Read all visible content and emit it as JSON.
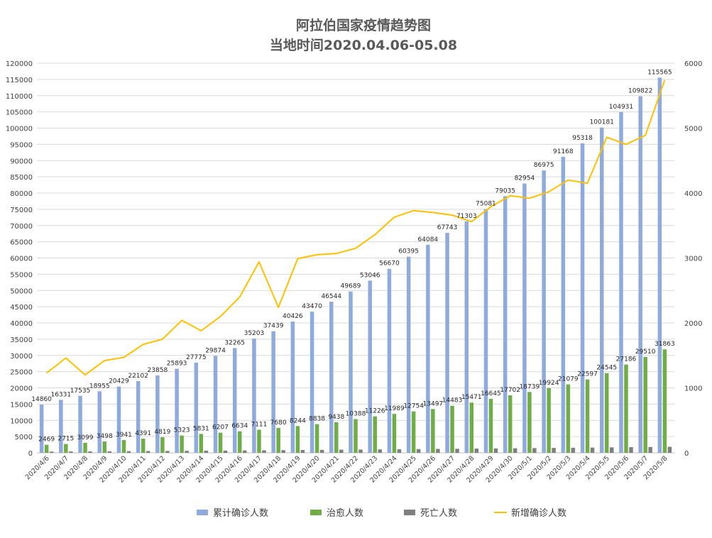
{
  "chart_data": {
    "type": "bar",
    "title": "阿拉伯国家疫情趋势图",
    "subtitle": "当地时间2020.04.06-05.08",
    "categories": [
      "2020/4/6",
      "2020/4/7",
      "2020/4/8",
      "2020/4/9",
      "2020/4/10",
      "2020/4/11",
      "2020/4/12",
      "2020/4/13",
      "2020/4/14",
      "2020/4/15",
      "2020/4/16",
      "2020/4/17",
      "2020/4/18",
      "2020/4/19",
      "2020/4/20",
      "2020/4/21",
      "2020/4/22",
      "2020/4/23",
      "2020/4/24",
      "2020/4/25",
      "2020/4/26",
      "2020/4/27",
      "2020/4/28",
      "2020/4/29",
      "2020/4/30",
      "2020/5/1",
      "2020/5/2",
      "2020/5/3",
      "2020/5/4",
      "2020/5/5",
      "2020/5/6",
      "2020/5/7",
      "2020/5/8"
    ],
    "series": [
      {
        "name": "累计确诊人数",
        "type": "bar",
        "axis": "left",
        "color": "#8faadc",
        "values": [
          14860,
          16331,
          17535,
          18955,
          20429,
          22102,
          23858,
          25893,
          27775,
          29874,
          32265,
          35203,
          37439,
          40426,
          43470,
          46544,
          49689,
          53046,
          56670,
          60395,
          64084,
          67743,
          71303,
          75081,
          79035,
          82954,
          86975,
          91168,
          95318,
          100181,
          104931,
          109822,
          115565
        ]
      },
      {
        "name": "治愈人数",
        "type": "bar",
        "axis": "left",
        "color": "#70ad47",
        "values": [
          2469,
          2715,
          3099,
          3498,
          3941,
          4391,
          4819,
          5323,
          5831,
          6207,
          6634,
          7111,
          7680,
          8244,
          8838,
          9438,
          10388,
          11226,
          11989,
          12754,
          13497,
          14483,
          15471,
          16645,
          17702,
          18739,
          19924,
          21079,
          22597,
          24545,
          27186,
          29510,
          31863
        ]
      },
      {
        "name": "死亡人数",
        "type": "bar",
        "axis": "left",
        "color": "#7f7f7f",
        "values": [
          null,
          null,
          null,
          null,
          null,
          null,
          null,
          null,
          null,
          null,
          null,
          null,
          null,
          null,
          null,
          null,
          null,
          null,
          null,
          null,
          null,
          null,
          null,
          null,
          null,
          null,
          null,
          null,
          null,
          null,
          null,
          null,
          null
        ],
        "approx_values": [
          380,
          420,
          450,
          480,
          520,
          550,
          590,
          620,
          660,
          700,
          740,
          780,
          820,
          870,
          920,
          970,
          1010,
          1060,
          1110,
          1160,
          1210,
          1260,
          1310,
          1360,
          1410,
          1460,
          1510,
          1560,
          1620,
          1680,
          1740,
          1800,
          1860
        ]
      },
      {
        "name": "新增确诊人数",
        "type": "line",
        "axis": "right",
        "color": "#ffc000",
        "values": [
          1230,
          1460,
          1200,
          1420,
          1470,
          1670,
          1750,
          2040,
          1880,
          2100,
          2400,
          2940,
          2240,
          2990,
          3050,
          3070,
          3150,
          3360,
          3630,
          3730,
          3700,
          3660,
          3560,
          3790,
          3960,
          3920,
          4020,
          4200,
          4150,
          4860,
          4750,
          4890,
          5740
        ]
      }
    ],
    "ylim_left": [
      0,
      120000
    ],
    "yticks_left": [
      0,
      5000,
      10000,
      15000,
      20000,
      25000,
      30000,
      35000,
      40000,
      45000,
      50000,
      55000,
      60000,
      65000,
      70000,
      75000,
      80000,
      85000,
      90000,
      95000,
      100000,
      105000,
      110000,
      115000,
      120000
    ],
    "ylim_right": [
      0,
      6000
    ],
    "yticks_right": [
      0,
      1000,
      2000,
      3000,
      4000,
      5000,
      6000
    ],
    "grid": true,
    "legend_position": "bottom"
  }
}
